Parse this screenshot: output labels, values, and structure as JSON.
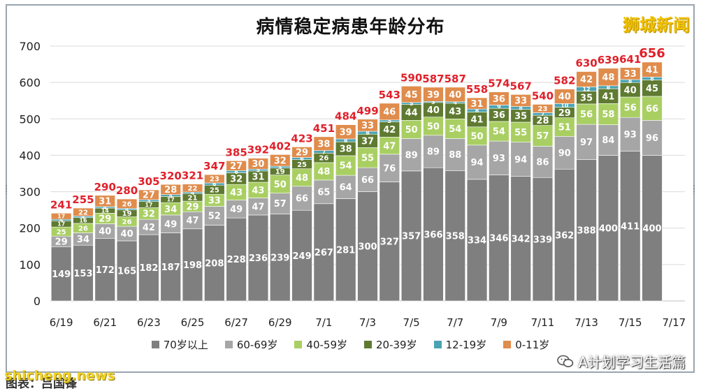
{
  "brand": "狮城新闻",
  "watermark": "shicheng.news",
  "source_label": "图表：吕国锋",
  "account_name": "A计划学习生活篇",
  "legend_icon": "wechat-icon",
  "colors": {
    "c70plus": "#7f7f7f",
    "c60_69": "#a6a6a6",
    "c40_59": "#a9cf63",
    "c20_39": "#5f7a31",
    "c12_19": "#4aa3b3",
    "c0_11": "#e08c4c",
    "total_label": "#e0202a",
    "grid": "#d9d9d9"
  },
  "chart_data": {
    "type": "bar",
    "stacked": true,
    "title": "病情稳定病患年龄分布",
    "xlabel": "",
    "ylabel": "",
    "ylim": [
      0,
      700
    ],
    "yticks": [
      0,
      100,
      200,
      300,
      400,
      500,
      600,
      700
    ],
    "grid": true,
    "legend_position": "bottom",
    "categories": [
      "6/19",
      "6/20",
      "6/21",
      "6/22",
      "6/23",
      "6/24",
      "6/25",
      "6/26",
      "6/27",
      "6/28",
      "6/29",
      "6/30",
      "7/1",
      "7/2",
      "7/3",
      "7/4",
      "7/5",
      "7/6",
      "7/7",
      "7/8",
      "7/9",
      "7/10",
      "7/11",
      "7/12",
      "7/13",
      "7/14",
      "7/15",
      "7/16",
      "7/17"
    ],
    "x_tick_labels": [
      "6/19",
      "",
      "6/21",
      "",
      "6/23",
      "",
      "6/25",
      "",
      "6/27",
      "",
      "6/29",
      "",
      "7/1",
      "",
      "7/3",
      "",
      "7/5",
      "",
      "7/7",
      "",
      "7/9",
      "",
      "7/11",
      "",
      "7/13",
      "",
      "7/15",
      "",
      "7/17"
    ],
    "series": [
      {
        "name": "70岁以上",
        "colorKey": "c70plus",
        "values": [
          149,
          153,
          172,
          165,
          182,
          187,
          198,
          208,
          228,
          236,
          239,
          249,
          267,
          281,
          300,
          327,
          357,
          366,
          358,
          334,
          346,
          342,
          339,
          362,
          388,
          400,
          411,
          400,
          null
        ]
      },
      {
        "name": "60-69岁",
        "colorKey": "c60_69",
        "values": [
          29,
          34,
          40,
          40,
          42,
          49,
          47,
          52,
          49,
          47,
          57,
          66,
          65,
          64,
          66,
          76,
          89,
          89,
          88,
          94,
          93,
          94,
          86,
          90,
          97,
          84,
          93,
          96,
          null
        ]
      },
      {
        "name": "40-59岁",
        "colorKey": "c40_59",
        "values": [
          25,
          26,
          29,
          26,
          32,
          34,
          29,
          33,
          43,
          43,
          50,
          48,
          48,
          54,
          55,
          47,
          50,
          50,
          54,
          50,
          54,
          55,
          57,
          51,
          56,
          58,
          56,
          66,
          null
        ]
      },
      {
        "name": "20-39岁",
        "colorKey": "c20_39",
        "values": [
          17,
          16,
          14,
          19,
          17,
          17,
          21,
          25,
          32,
          31,
          19,
          25,
          26,
          38,
          37,
          42,
          44,
          40,
          43,
          41,
          36,
          35,
          28,
          29,
          35,
          41,
          40,
          45,
          null
        ]
      },
      {
        "name": "12-19岁",
        "colorKey": "c12_19",
        "values": [
          4,
          4,
          4,
          4,
          5,
          5,
          4,
          6,
          6,
          5,
          5,
          6,
          7,
          8,
          8,
          5,
          5,
          3,
          4,
          8,
          9,
          8,
          7,
          10,
          12,
          8,
          8,
          8,
          null
        ]
      },
      {
        "name": "0-11岁",
        "colorKey": "c0_11",
        "values": [
          17,
          22,
          31,
          26,
          27,
          28,
          22,
          23,
          27,
          30,
          32,
          29,
          38,
          39,
          33,
          46,
          45,
          39,
          40,
          31,
          36,
          33,
          23,
          40,
          42,
          48,
          33,
          41,
          null
        ]
      }
    ],
    "totals": [
      241,
      255,
      290,
      280,
      305,
      320,
      321,
      347,
      385,
      392,
      402,
      423,
      451,
      484,
      499,
      543,
      590,
      587,
      587,
      558,
      574,
      567,
      540,
      582,
      630,
      639,
      641,
      656,
      null
    ]
  }
}
